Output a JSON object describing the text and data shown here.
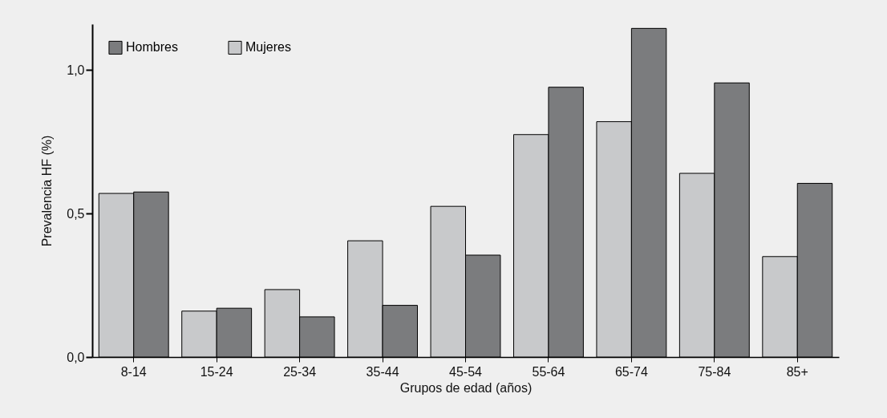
{
  "chart_data": {
    "type": "bar",
    "xlabel": "Grupos de edad (años)",
    "ylabel": "Prevalencia HF (%)",
    "categories": [
      "8-14",
      "15-24",
      "25-34",
      "35-44",
      "45-54",
      "55-64",
      "65-74",
      "75-84",
      "85+"
    ],
    "series": [
      {
        "name": "Mujeres",
        "color": "#c8c9cb",
        "values": [
          0.57,
          0.16,
          0.235,
          0.405,
          0.525,
          0.775,
          0.82,
          0.64,
          0.35
        ]
      },
      {
        "name": "Hombres",
        "color": "#7b7c7e",
        "values": [
          0.575,
          0.17,
          0.14,
          0.18,
          0.355,
          0.94,
          1.145,
          0.955,
          0.605
        ]
      }
    ],
    "ylim": [
      0,
      1.16
    ],
    "yticks": [
      {
        "value": 0,
        "label": "0,0"
      },
      {
        "value": 0.5,
        "label": "0,5"
      },
      {
        "value": 1,
        "label": "1,0"
      }
    ],
    "grid": false,
    "legend": "top left"
  }
}
